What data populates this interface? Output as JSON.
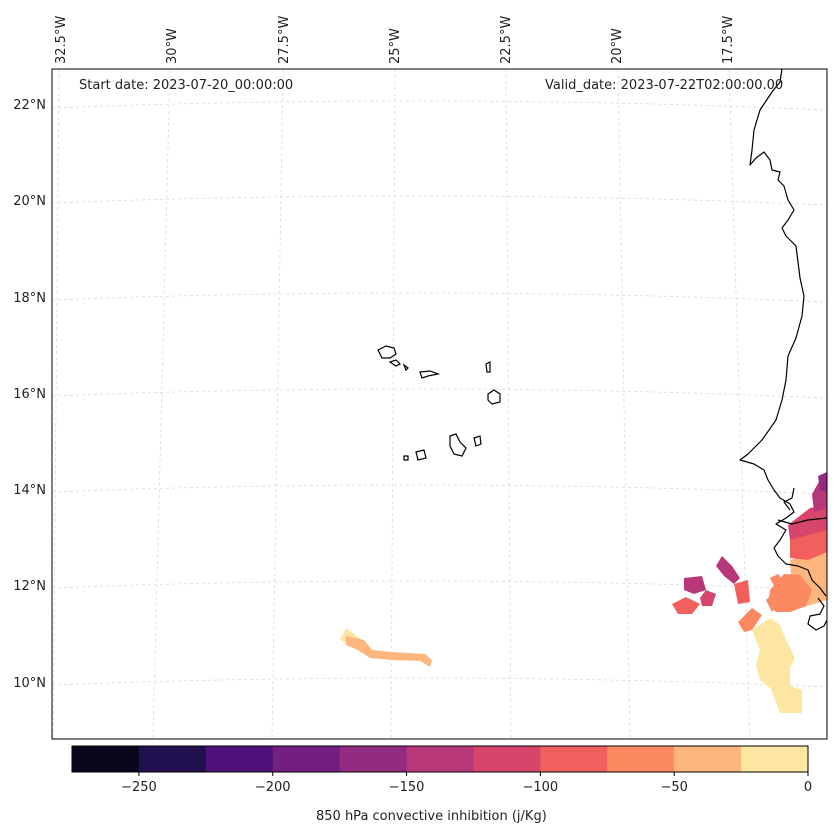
{
  "annotations": {
    "start_date": "Start date: 2023-07-20_00:00:00",
    "valid_date": "Valid_date: 2023-07-22T02:00:00.00"
  },
  "gridlines": {
    "longitude_labels": [
      "32.5°W",
      "30°W",
      "27.5°W",
      "25°W",
      "22.5°W",
      "20°W",
      "17.5°W"
    ],
    "latitude_labels": [
      "22°N",
      "20°N",
      "18°N",
      "16°N",
      "14°N",
      "12°N",
      "10°N"
    ]
  },
  "colorbar": {
    "label": "850 hPa convective inhibition (j/Kg)",
    "tick_labels": [
      "−250",
      "−200",
      "−150",
      "−100",
      "−50",
      "0"
    ],
    "tick_values": [
      -250,
      -200,
      -150,
      -100,
      -50,
      0
    ],
    "range": [
      -275,
      0
    ],
    "colors": [
      "#07061c",
      "#221150",
      "#4f127b",
      "#721f81",
      "#932b80",
      "#b73779",
      "#d8456c",
      "#f1605d",
      "#fc8961",
      "#fdb67e",
      "#fde6a2"
    ]
  },
  "field_colors": {
    "cin_0_to_-25": "#fde6a2",
    "cin_-25_to_-50": "#fdb67e",
    "cin_-50_to_-75": "#fc8961",
    "cin_-75_to_-100": "#f1605d",
    "cin_-100_to_-125": "#d8456c",
    "cin_-125_to_-150": "#b73779",
    "cin_-150_to_-175": "#932b80"
  }
}
